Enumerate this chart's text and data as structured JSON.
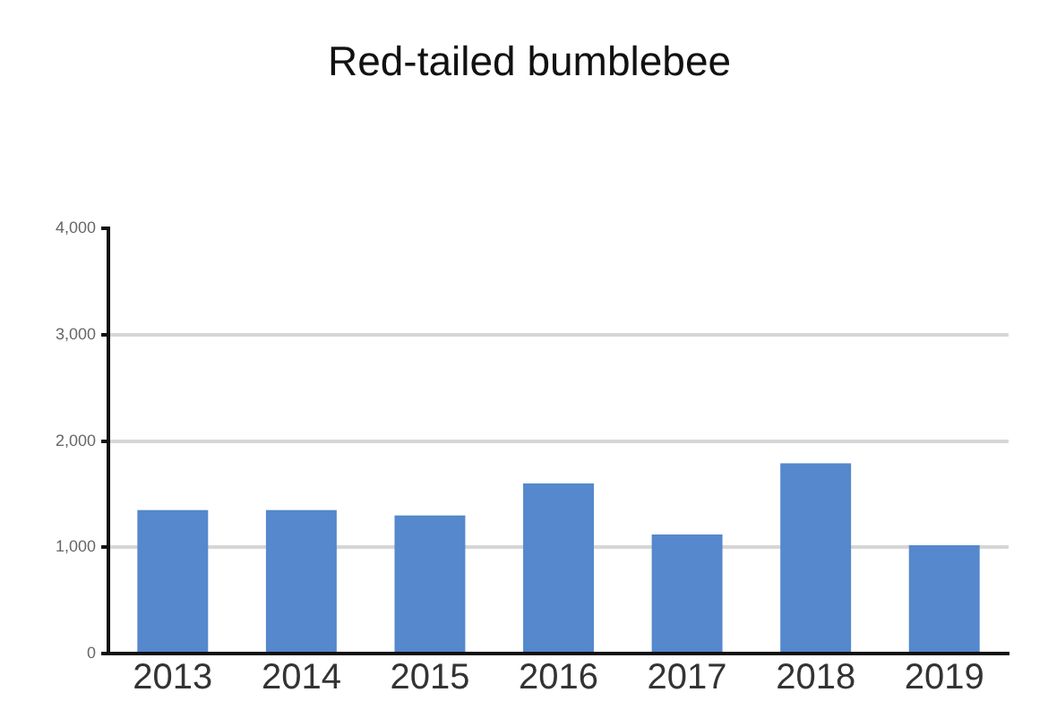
{
  "chart_data": {
    "type": "bar",
    "title": "Red-tailed bumblebee",
    "categories": [
      "2013",
      "2014",
      "2015",
      "2016",
      "2017",
      "2018",
      "2019"
    ],
    "values": [
      1350,
      1350,
      1300,
      1600,
      1120,
      1790,
      1020
    ],
    "color": "#5588cc",
    "ylim": [
      0,
      4000
    ],
    "yticks": [
      {
        "value": 0,
        "label": "0"
      },
      {
        "value": 1000,
        "label": "1,000"
      },
      {
        "value": 2000,
        "label": "2,000"
      },
      {
        "value": 3000,
        "label": "3,000"
      },
      {
        "value": 4000,
        "label": "4,000"
      }
    ],
    "grid": "y",
    "legend": false
  }
}
